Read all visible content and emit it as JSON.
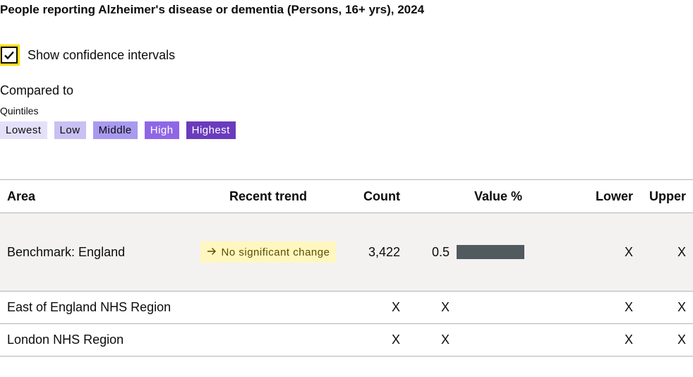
{
  "title": "People reporting Alzheimer's disease or dementia (Persons, 16+ yrs), 2024",
  "confidence_intervals": {
    "label": "Show confidence intervals",
    "checked": true
  },
  "compared_to": "Compared to",
  "quintiles": {
    "label": "Quintiles",
    "items": [
      {
        "label": "Lowest",
        "bg": "#e4e0fa",
        "fg": "#0b0c0c"
      },
      {
        "label": "Low",
        "bg": "#c9c0f3",
        "fg": "#0b0c0c"
      },
      {
        "label": "Middle",
        "bg": "#a99af0",
        "fg": "#0b0c0c"
      },
      {
        "label": "High",
        "bg": "#8f67e6",
        "fg": "#ffffff"
      },
      {
        "label": "Highest",
        "bg": "#6a3cbd",
        "fg": "#ffffff"
      }
    ]
  },
  "table": {
    "headers": {
      "area": "Area",
      "trend": "Recent trend",
      "count": "Count",
      "value": "Value %",
      "lower": "Lower",
      "upper": "Upper"
    },
    "benchmark": {
      "area": "Benchmark: England",
      "trend": "No significant change",
      "count": "3,422",
      "value": "0.5",
      "bar_fraction": 0.4,
      "lower": "X",
      "upper": "X"
    },
    "rows": [
      {
        "area": "East of England NHS Region",
        "count": "X",
        "value": "X",
        "lower": "X",
        "upper": "X"
      },
      {
        "area": "London NHS Region",
        "count": "X",
        "value": "X",
        "lower": "X",
        "upper": "X"
      }
    ]
  },
  "colors": {
    "bar": "#505a5f",
    "trend_badge_bg": "#fff7bf",
    "focus_outline": "#ffdd00",
    "benchmark_row_bg": "#f3f2f1"
  },
  "icons": {
    "checkbox": "checkmark-icon",
    "trend": "arrow-right-icon"
  }
}
